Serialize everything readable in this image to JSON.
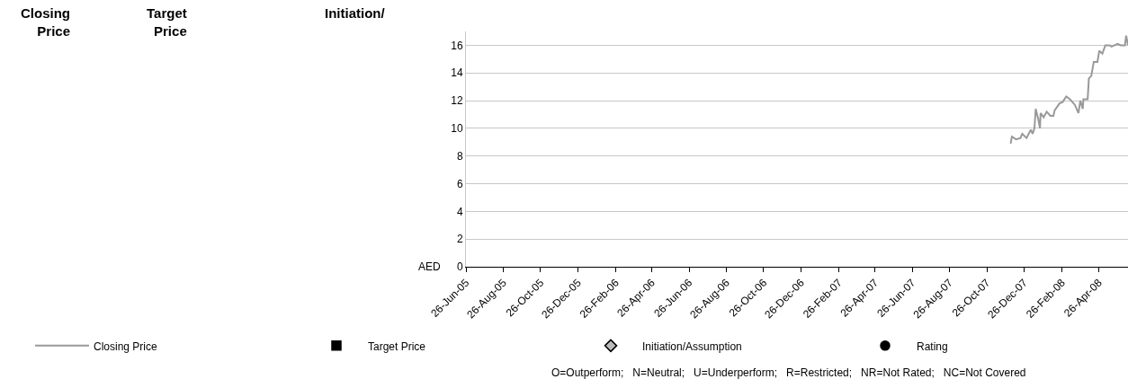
{
  "chart_data": {
    "type": "line",
    "ylabel": "AED",
    "annotations": [
      "Closing\nPrice",
      "Target\nPrice",
      "Initiation/",
      "O=Outperform;   N=Neutral;   U=Underperform;   R=Restricted;   NR=Not Rated;   NC=Not Covered"
    ],
    "xlim": [
      "2005-06-26",
      "2008-06-13"
    ],
    "xticks": [
      {
        "value": "2005-06-26",
        "label": "26-Jun-05"
      },
      {
        "value": "2005-08-26",
        "label": "26-Aug-05"
      },
      {
        "value": "2005-10-26",
        "label": "26-Oct-05"
      },
      {
        "value": "2005-12-26",
        "label": "26-Dec-05"
      },
      {
        "value": "2006-02-26",
        "label": "26-Feb-06"
      },
      {
        "value": "2006-04-26",
        "label": "26-Apr-06"
      },
      {
        "value": "2006-06-26",
        "label": "26-Jun-06"
      },
      {
        "value": "2006-08-26",
        "label": "26-Aug-06"
      },
      {
        "value": "2006-10-26",
        "label": "26-Oct-06"
      },
      {
        "value": "2006-12-26",
        "label": "26-Dec-06"
      },
      {
        "value": "2007-02-26",
        "label": "26-Feb-07"
      },
      {
        "value": "2007-04-26",
        "label": "26-Apr-07"
      },
      {
        "value": "2007-06-26",
        "label": "26-Jun-07"
      },
      {
        "value": "2007-08-26",
        "label": "26-Aug-07"
      },
      {
        "value": "2007-10-26",
        "label": "26-Oct-07"
      },
      {
        "value": "2007-12-26",
        "label": "26-Dec-07"
      },
      {
        "value": "2008-02-26",
        "label": "26-Feb-08"
      },
      {
        "value": "2008-04-26",
        "label": "26-Apr-08"
      }
    ],
    "ylim": [
      0,
      17
    ],
    "yticks": [
      0,
      2,
      4,
      6,
      8,
      10,
      12,
      14,
      16
    ],
    "grid": "y",
    "legend": "bottom",
    "series": [
      {
        "name": "Closing Price",
        "color": "#999999",
        "marker": "none",
        "x": [
          "2007-12-04",
          "2007-12-06",
          "2007-12-13",
          "2007-12-20",
          "2007-12-23",
          "2007-12-30",
          "2008-01-06",
          "2008-01-09",
          "2008-01-12",
          "2008-01-14",
          "2008-01-18",
          "2008-01-21",
          "2008-01-22",
          "2008-01-27",
          "2008-02-01",
          "2008-02-07",
          "2008-02-12",
          "2008-02-14",
          "2008-02-22",
          "2008-02-27",
          "2008-03-04",
          "2008-03-10",
          "2008-03-18",
          "2008-03-24",
          "2008-03-27",
          "2008-03-31",
          "2008-04-01",
          "2008-04-08",
          "2008-04-10",
          "2008-04-14",
          "2008-04-18",
          "2008-04-24",
          "2008-04-27",
          "2008-05-02",
          "2008-05-07",
          "2008-05-14",
          "2008-05-17",
          "2008-05-22",
          "2008-05-27",
          "2008-06-01",
          "2008-06-08",
          "2008-06-10",
          "2008-06-13"
        ],
        "values": [
          8.9,
          9.4,
          9.2,
          9.3,
          9.6,
          9.3,
          9.9,
          9.6,
          10.0,
          11.4,
          10.7,
          10.0,
          11.1,
          10.8,
          11.2,
          10.9,
          10.9,
          11.3,
          11.8,
          11.9,
          12.3,
          12.1,
          11.7,
          11.1,
          12.0,
          11.4,
          12.1,
          12.1,
          13.6,
          13.8,
          14.8,
          14.8,
          15.6,
          15.4,
          16.0,
          16.0,
          15.9,
          16.0,
          16.1,
          16.0,
          16.0,
          16.7,
          16.0
        ]
      },
      {
        "name": "Target Price",
        "type": "scatter",
        "color": "#000000",
        "marker": "square"
      },
      {
        "name": "Initiation/Assumption",
        "type": "scatter",
        "color": "#bbbbbb",
        "marker": "diamond"
      },
      {
        "name": "Rating",
        "type": "scatter",
        "color": "#000000",
        "marker": "circle"
      }
    ]
  }
}
